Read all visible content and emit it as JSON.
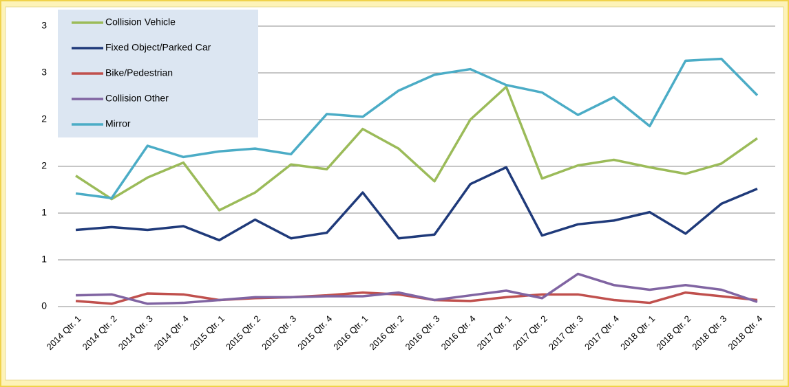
{
  "chart_data": {
    "type": "line",
    "categories": [
      "2014 Qtr. 1",
      "2014 Qtr. 2",
      "2014 Qtr. 3",
      "2014 Qtr. 4",
      "2015 Qtr. 1",
      "2015 Qtr. 2",
      "2015 Qtr. 3",
      "2015 Qtr. 4",
      "2016 Qtr. 1",
      "2016 Qtr. 2",
      "2016 Qtr. 3",
      "2016 Qtr. 4",
      "2017 Qtr. 1",
      "2017 Qtr. 2",
      "2017 Qtr. 3",
      "2017 Qtr. 4",
      "2018 Qtr. 1",
      "2018 Qtr. 2",
      "2018 Qtr. 3",
      "2018 Qtr. 4"
    ],
    "series": [
      {
        "name": "Collision Vehicle",
        "color": "#9bbb59",
        "values": [
          1.4,
          1.15,
          1.38,
          1.54,
          1.03,
          1.22,
          1.52,
          1.47,
          1.9,
          1.69,
          1.34,
          2.0,
          2.35,
          1.37,
          1.51,
          1.57,
          1.49,
          1.42,
          1.53,
          1.8
        ]
      },
      {
        "name": "Fixed Object/Parked Car",
        "color": "#1f3a7a",
        "values": [
          0.82,
          0.85,
          0.82,
          0.86,
          0.71,
          0.93,
          0.73,
          0.79,
          1.22,
          0.73,
          0.77,
          1.31,
          1.49,
          0.76,
          0.88,
          0.92,
          1.01,
          0.78,
          1.1,
          1.26
        ]
      },
      {
        "name": "Bike/Pedestrian",
        "color": "#c0504d",
        "values": [
          0.06,
          0.03,
          0.14,
          0.13,
          0.07,
          0.09,
          0.1,
          0.12,
          0.15,
          0.13,
          0.07,
          0.06,
          0.1,
          0.13,
          0.13,
          0.07,
          0.04,
          0.15,
          0.11,
          0.07
        ]
      },
      {
        "name": "Collision Other",
        "color": "#8064a2",
        "values": [
          0.12,
          0.13,
          0.03,
          0.04,
          0.07,
          0.1,
          0.1,
          0.11,
          0.11,
          0.15,
          0.07,
          0.12,
          0.17,
          0.09,
          0.35,
          0.23,
          0.18,
          0.23,
          0.18,
          0.05
        ]
      },
      {
        "name": "Mirror",
        "color": "#4bacc6",
        "values": [
          1.21,
          1.16,
          1.72,
          1.6,
          1.66,
          1.69,
          1.63,
          2.06,
          2.03,
          2.31,
          2.48,
          2.54,
          2.37,
          2.29,
          2.05,
          2.24,
          1.93,
          2.63,
          2.65,
          2.26
        ]
      }
    ],
    "ylim": [
      0,
      3
    ],
    "yticks": [
      0,
      {
        "value": 0.5,
        "label": "1"
      },
      1,
      {
        "value": 1.5,
        "label": "2"
      },
      2,
      {
        "value": 2.5,
        "label": "3"
      },
      3
    ],
    "grid": true
  }
}
